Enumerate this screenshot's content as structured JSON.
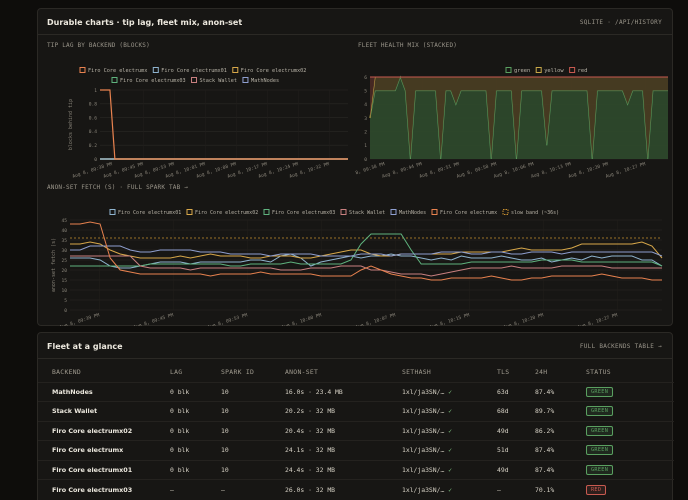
{
  "charts_panel": {
    "title": "Durable charts · tip lag, fleet mix, anon-set",
    "link": "SQLITE · /API/HISTORY"
  },
  "colors": {
    "firo_core_electrumx": "#e8824f",
    "firo_core_electrumx01": "#8fb4cf",
    "firo_core_electrumx02": "#d8a84a",
    "firo_core_electrumx03": "#5fb37e",
    "stack_wallet": "#c98080",
    "mathnodes": "#8f9fd0",
    "green": "#5aa060",
    "yellow": "#c8a848",
    "red": "#c85a50",
    "slow_band": "#c89030"
  },
  "tip_lag_chart": {
    "title": "TIP LAG BY BACKEND (BLOCKS)",
    "ylabel": "blocks behind tip",
    "legend": [
      "Firo Core electrumx",
      "Firo Core electrumx01",
      "Firo Core electrumx02",
      "Firo Core electrumx03",
      "Stack Wallet",
      "MathNodes"
    ]
  },
  "fleet_chart": {
    "title": "FLEET HEALTH MIX (STACKED)",
    "legend": [
      "green",
      "yellow",
      "red"
    ]
  },
  "anon_chart": {
    "title": "ANON-SET FETCH (S) · FULL SPARK TAB →",
    "ylabel": "anon-set fetch (s)",
    "legend": [
      "Firo Core electrumx01",
      "Firo Core electrumx02",
      "Firo Core electrumx03",
      "Stack Wallet",
      "MathNodes",
      "Firo Core electrumx",
      "slow band (~36s)"
    ]
  },
  "chart_data": [
    {
      "type": "line",
      "title": "TIP LAG BY BACKEND (BLOCKS)",
      "ylabel": "blocks behind tip",
      "ylim": [
        0,
        1
      ],
      "yticks": [
        "0",
        "0.2",
        "0.4",
        "0.6",
        "0.8",
        "1"
      ],
      "xticks": [
        "Aug 8, 09:38 PM",
        "Aug 8, 09:45 PM",
        "Aug 8, 09:53 PM",
        "Aug 8, 10:01 PM",
        "Aug 8, 10:08 PM",
        "Aug 8, 10:17 PM",
        "Aug 8, 10:24 PM",
        "Aug 8, 10:32 PM"
      ],
      "series": [
        {
          "name": "Firo Core electrumx",
          "x": [
            0,
            0.04,
            0.06,
            1
          ],
          "values": [
            1,
            1,
            0,
            0
          ]
        },
        {
          "name": "Firo Core electrumx01",
          "x": [
            0,
            1
          ],
          "values": [
            0,
            0
          ]
        },
        {
          "name": "Firo Core electrumx02",
          "x": [
            0,
            1
          ],
          "values": [
            0,
            0
          ]
        },
        {
          "name": "Firo Core electrumx03",
          "x": [
            0,
            1
          ],
          "values": [
            0,
            0
          ]
        },
        {
          "name": "Stack Wallet",
          "x": [
            0,
            1
          ],
          "values": [
            0,
            0
          ]
        },
        {
          "name": "MathNodes",
          "x": [
            0,
            1
          ],
          "values": [
            0,
            0
          ]
        }
      ],
      "grid": true,
      "legend": "top"
    },
    {
      "type": "area",
      "title": "FLEET HEALTH MIX (STACKED)",
      "ylim": [
        0,
        6
      ],
      "yticks": [
        "0",
        "1",
        "2",
        "3",
        "4",
        "5",
        "6"
      ],
      "xticks": [
        "Aug 8, 09:38 PM",
        "Aug 8, 09:44 PM",
        "Aug 8, 09:51 PM",
        "Aug 8, 09:58 PM",
        "Aug 8, 10:06 PM",
        "Aug 8, 10:13 PM",
        "Aug 8, 10:20 PM",
        "Aug 8, 10:27 PM"
      ],
      "series": [
        {
          "name": "green",
          "values": [
            3,
            5,
            5,
            5,
            5,
            5,
            6,
            5,
            0,
            5,
            5,
            5,
            5,
            5,
            0,
            5,
            5,
            4,
            5,
            5,
            5,
            5,
            5,
            5,
            0,
            5,
            5,
            5,
            5,
            0,
            5,
            5,
            5,
            5,
            5,
            1,
            5,
            5,
            5,
            5,
            5,
            5,
            5,
            5,
            0,
            5,
            5,
            5,
            5,
            5,
            5,
            4,
            5,
            5,
            5,
            0,
            5,
            5,
            5,
            5
          ]
        },
        {
          "name": "yellow",
          "values": [
            0,
            1,
            1,
            1,
            1,
            1,
            0,
            1,
            6,
            1,
            1,
            1,
            1,
            1,
            6,
            1,
            1,
            2,
            1,
            1,
            1,
            1,
            1,
            1,
            6,
            1,
            1,
            1,
            1,
            6,
            1,
            1,
            1,
            1,
            1,
            5,
            1,
            1,
            1,
            1,
            1,
            1,
            1,
            1,
            6,
            1,
            1,
            1,
            1,
            1,
            1,
            2,
            1,
            1,
            1,
            6,
            1,
            1,
            1,
            1
          ]
        },
        {
          "name": "red",
          "values": [
            3,
            0,
            0,
            0,
            0,
            0,
            0,
            0,
            0,
            0,
            0,
            0,
            0,
            0,
            0,
            0,
            0,
            0,
            0,
            0,
            0,
            0,
            0,
            0,
            0,
            0,
            0,
            0,
            0,
            0,
            0,
            0,
            0,
            0,
            0,
            0,
            0,
            0,
            0,
            0,
            0,
            0,
            0,
            0,
            0,
            0,
            0,
            0,
            0,
            0,
            0,
            0,
            0,
            0,
            0,
            0,
            0,
            0,
            0,
            0
          ]
        }
      ],
      "grid": true,
      "legend": "top"
    },
    {
      "type": "line",
      "title": "ANON-SET FETCH (S) · FULL SPARK TAB →",
      "ylabel": "anon-set fetch (s)",
      "ylim": [
        0,
        45
      ],
      "yticks": [
        "0",
        "5",
        "10",
        "15",
        "20",
        "25",
        "30",
        "35",
        "40",
        "45"
      ],
      "xticks": [
        "Aug 8, 09:39 PM",
        "Aug 8, 09:45 PM",
        "Aug 8, 09:53 PM",
        "Aug 8, 10:00 PM",
        "Aug 8, 10:07 PM",
        "Aug 8, 10:15 PM",
        "Aug 8, 10:20 PM",
        "Aug 8, 10:27 PM"
      ],
      "series": [
        {
          "name": "Firo Core electrumx01",
          "values": [
            26,
            26,
            26,
            25,
            22,
            21,
            21,
            22,
            23,
            24,
            24,
            24,
            23,
            24,
            24,
            24,
            24,
            24,
            25,
            25,
            24,
            27,
            28,
            26,
            22,
            24,
            25,
            26,
            27,
            26,
            27,
            27,
            28,
            27,
            27,
            26,
            25,
            26,
            25,
            27,
            26,
            26,
            26,
            27,
            26,
            25,
            25,
            26,
            24,
            25,
            26,
            25,
            27,
            26,
            27,
            27,
            27,
            25,
            25,
            22
          ]
        },
        {
          "name": "Firo Core electrumx02",
          "values": [
            33,
            33,
            34,
            33,
            30,
            28,
            27,
            26,
            26,
            26,
            26,
            27,
            26,
            27,
            28,
            27,
            27,
            27,
            26,
            26,
            27,
            27,
            27,
            26,
            26,
            27,
            28,
            29,
            30,
            30,
            28,
            27,
            27,
            28,
            28,
            28,
            28,
            28,
            28,
            29,
            29,
            29,
            29,
            29,
            30,
            31,
            30,
            30,
            30,
            30,
            31,
            33,
            33,
            33,
            33,
            33,
            33,
            34,
            32,
            26
          ]
        },
        {
          "name": "Firo Core electrumx03",
          "values": [
            22,
            22,
            22,
            22,
            22,
            22,
            22,
            22,
            23,
            23,
            23,
            23,
            23,
            23,
            23,
            23,
            22,
            22,
            23,
            23,
            23,
            23,
            24,
            23,
            23,
            23,
            23,
            23,
            25,
            33,
            38,
            38,
            38,
            38,
            30,
            23,
            23,
            23,
            23,
            23,
            24,
            24,
            24,
            24,
            24,
            24,
            24,
            25,
            25,
            25,
            25,
            24,
            24,
            24,
            24,
            24,
            24,
            24,
            24,
            22
          ]
        },
        {
          "name": "Stack Wallet",
          "values": [
            27,
            27,
            27,
            27,
            27,
            27,
            27,
            22,
            21,
            21,
            21,
            21,
            20,
            21,
            21,
            21,
            21,
            21,
            21,
            21,
            21,
            20,
            20,
            20,
            21,
            21,
            21,
            22,
            22,
            22,
            20,
            20,
            19,
            18,
            18,
            18,
            17,
            18,
            19,
            20,
            21,
            21,
            21,
            21,
            22,
            21,
            21,
            21,
            21,
            22,
            22,
            22,
            22,
            22,
            21,
            21,
            21,
            21,
            21,
            21
          ]
        },
        {
          "name": "MathNodes",
          "values": [
            30,
            30,
            32,
            32,
            32,
            32,
            30,
            29,
            29,
            30,
            30,
            30,
            30,
            29,
            29,
            29,
            28,
            28,
            28,
            28,
            27,
            28,
            28,
            28,
            28,
            27,
            27,
            27,
            27,
            28,
            28,
            28,
            27,
            28,
            28,
            28,
            28,
            29,
            29,
            29,
            28,
            28,
            29,
            29,
            28,
            28,
            29,
            29,
            29,
            28,
            29,
            29,
            29,
            29,
            29,
            29,
            29,
            29,
            29,
            27
          ]
        },
        {
          "name": "Firo Core electrumx",
          "values": [
            43,
            43,
            44,
            43,
            26,
            20,
            19,
            18,
            18,
            18,
            18,
            18,
            18,
            18,
            17,
            18,
            18,
            18,
            18,
            19,
            18,
            18,
            18,
            18,
            18,
            17,
            17,
            17,
            17,
            20,
            22,
            20,
            18,
            17,
            16,
            16,
            15,
            15,
            16,
            16,
            16,
            16,
            17,
            16,
            15,
            15,
            16,
            16,
            17,
            17,
            17,
            17,
            17,
            18,
            17,
            16,
            16,
            16,
            15,
            15
          ]
        }
      ],
      "slow_band": 36,
      "grid": true,
      "legend": "top"
    }
  ],
  "fleet_panel": {
    "title": "Fleet at a glance",
    "link": "FULL BACKENDS TABLE →",
    "headers": [
      "BACKEND",
      "LAG",
      "SPARK ID",
      "ANON-SET",
      "SETHASH",
      "TLS",
      "24H",
      "STATUS"
    ],
    "rows": [
      {
        "name": "MathNodes",
        "lag": "0 blk",
        "spark": "10",
        "anon": "16.0s · 23.4 MB",
        "sethash": "1xl/ja3SN/…",
        "check": "✓",
        "tls": "63d",
        "h24": "87.4%",
        "status": "GREEN",
        "status_color": "#5aa060"
      },
      {
        "name": "Stack Wallet",
        "lag": "0 blk",
        "spark": "10",
        "anon": "20.2s · 32 MB",
        "sethash": "1xl/ja3SN/…",
        "check": "✓",
        "tls": "68d",
        "h24": "89.7%",
        "status": "GREEN",
        "status_color": "#5aa060"
      },
      {
        "name": "Firo Core electrumx02",
        "lag": "0 blk",
        "spark": "10",
        "anon": "20.4s · 32 MB",
        "sethash": "1xl/ja3SN/…",
        "check": "✓",
        "tls": "49d",
        "h24": "86.2%",
        "status": "GREEN",
        "status_color": "#5aa060"
      },
      {
        "name": "Firo Core electrumx",
        "lag": "0 blk",
        "spark": "10",
        "anon": "24.1s · 32 MB",
        "sethash": "1xl/ja3SN/…",
        "check": "✓",
        "tls": "51d",
        "h24": "87.4%",
        "status": "GREEN",
        "status_color": "#5aa060"
      },
      {
        "name": "Firo Core electrumx01",
        "lag": "0 blk",
        "spark": "10",
        "anon": "24.4s · 32 MB",
        "sethash": "1xl/ja3SN/…",
        "check": "✓",
        "tls": "49d",
        "h24": "87.4%",
        "status": "GREEN",
        "status_color": "#5aa060"
      },
      {
        "name": "Firo Core electrumx03",
        "lag": "—",
        "spark": "—",
        "anon": "26.0s · 32 MB",
        "sethash": "1xl/ja3SN/…",
        "check": "✓",
        "tls": "—",
        "h24": "70.1%",
        "status": "RED",
        "status_color": "#c85a50"
      }
    ]
  }
}
